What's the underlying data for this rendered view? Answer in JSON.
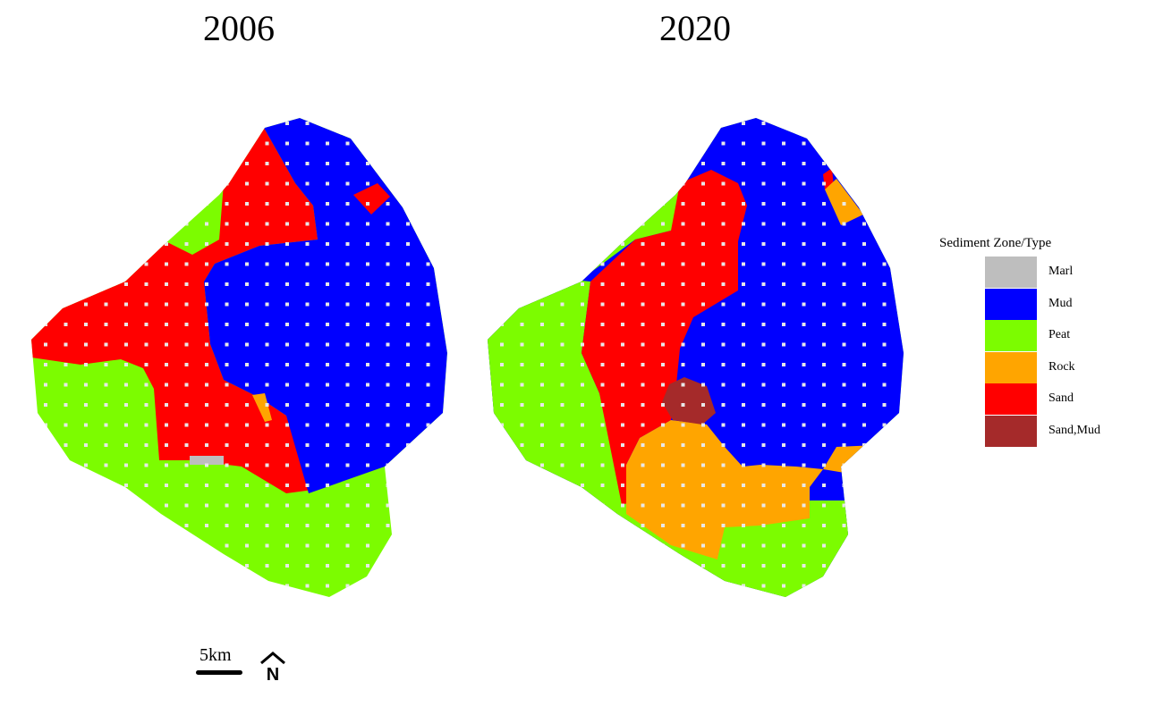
{
  "maps": [
    {
      "title": "2006"
    },
    {
      "title": "2020"
    }
  ],
  "legend": {
    "title": "Sediment Zone/Type",
    "items": [
      {
        "label": "Marl",
        "color": "#bebebe"
      },
      {
        "label": "Mud",
        "color": "#0000ff"
      },
      {
        "label": "Peat",
        "color": "#7cfc00"
      },
      {
        "label": "Rock",
        "color": "#ffa500"
      },
      {
        "label": "Sand",
        "color": "#ff0000"
      },
      {
        "label": "Sand,Mud",
        "color": "#a52a2a"
      }
    ]
  },
  "scale_bar": {
    "label": "5km"
  },
  "north_arrow": {
    "label": "N",
    "icon": "north-arrow-icon"
  }
}
